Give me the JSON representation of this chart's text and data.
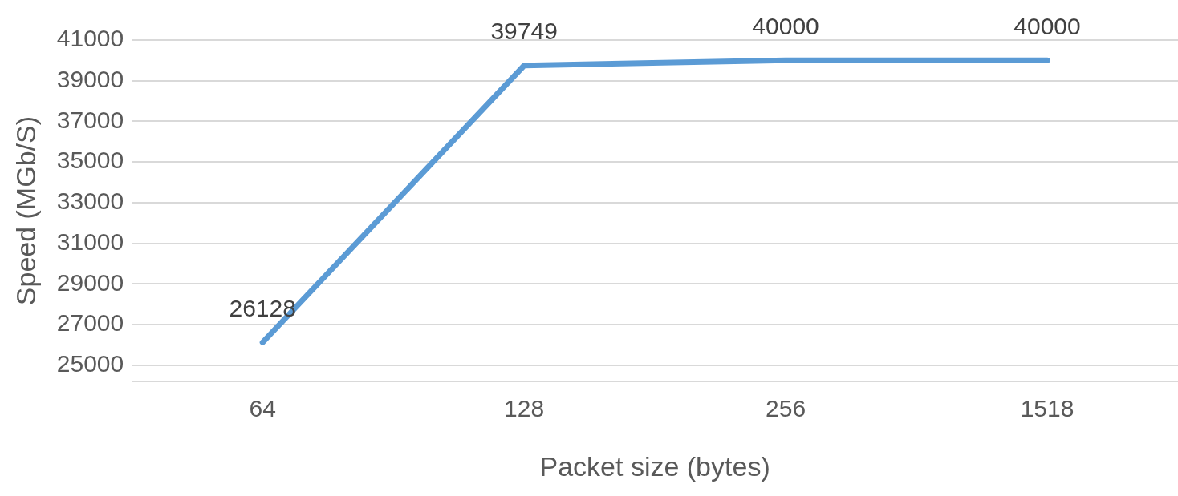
{
  "chart_data": {
    "type": "line",
    "xlabel": "Packet size (bytes)",
    "ylabel": "Speed (MGb/S)",
    "categories": [
      "64",
      "128",
      "256",
      "1518"
    ],
    "series": [
      {
        "color": "#5b9bd5",
        "values": [
          26128,
          39749,
          40000,
          40000
        ]
      }
    ],
    "ylim": [
      24200,
      41000
    ],
    "yticks": [
      25000,
      27000,
      29000,
      31000,
      33000,
      35000,
      37000,
      39000,
      41000
    ],
    "grid": "y",
    "legend": false,
    "marker": "none",
    "line_style": "solid",
    "data_labels": true
  }
}
